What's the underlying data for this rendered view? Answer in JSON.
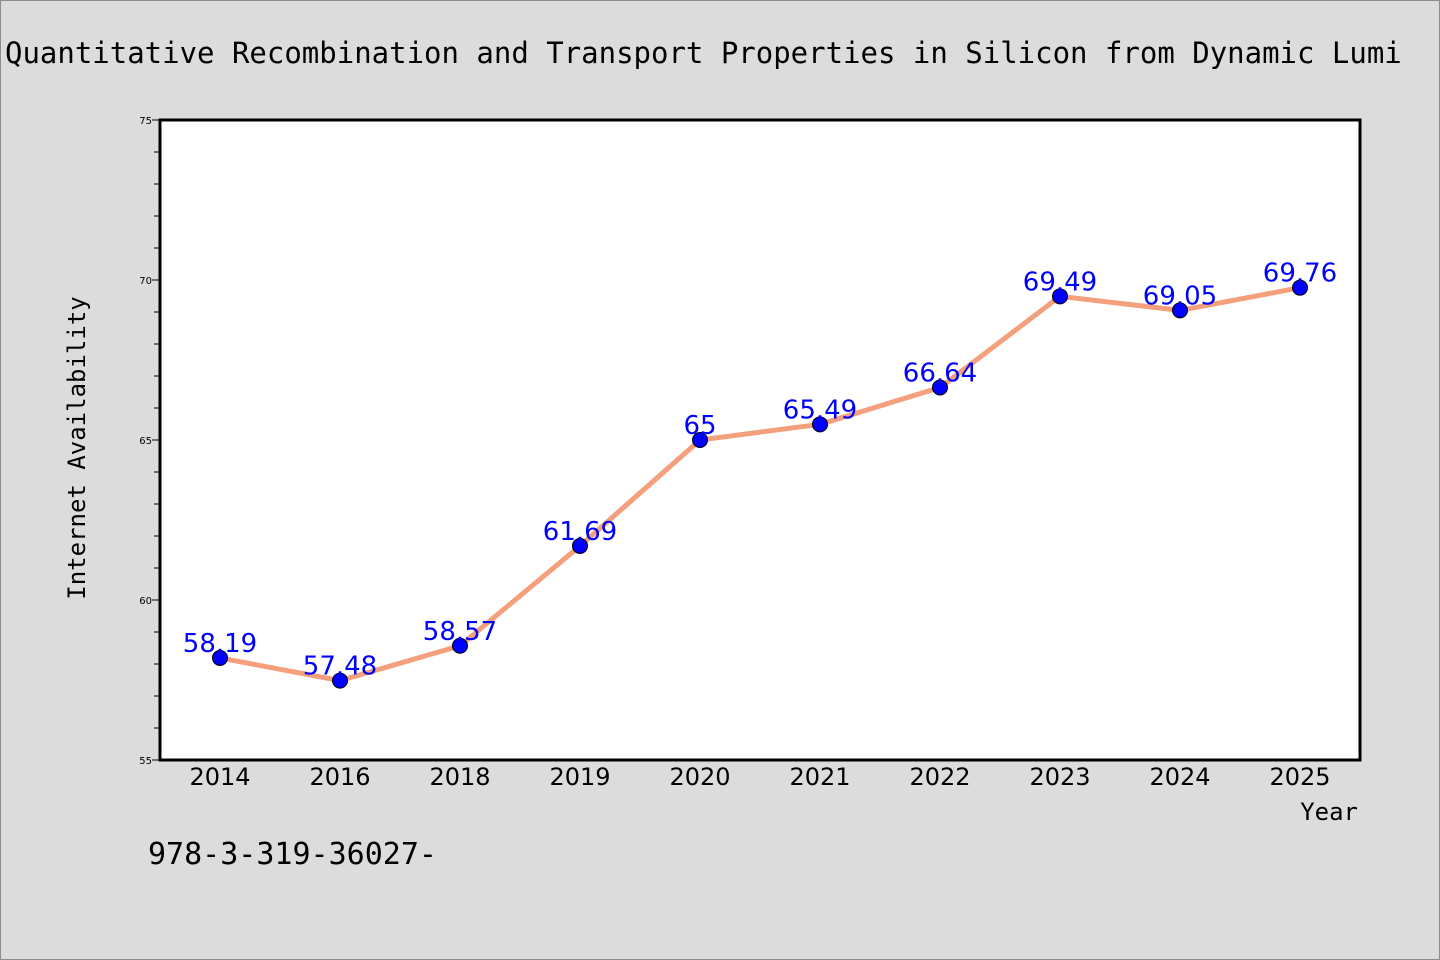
{
  "chart_data": {
    "type": "line",
    "title": "Quantitative Recombination and Transport Properties in Silicon from Dynamic Lumi",
    "xlabel": "Year",
    "ylabel": "Internet Availability",
    "categories": [
      "2014",
      "2016",
      "2018",
      "2019",
      "2020",
      "2021",
      "2022",
      "2023",
      "2024",
      "2025"
    ],
    "series": [
      {
        "values": [
          58.19,
          57.48,
          58.57,
          61.69,
          65,
          65.49,
          66.64,
          69.49,
          69.05,
          69.76
        ],
        "labels": [
          "58.19",
          "57.48",
          "58.57",
          "61.69",
          "65",
          "65.49",
          "66.64",
          "69.49",
          "69.05",
          "69.76"
        ],
        "line_color": "#f4a07c",
        "marker_color": "#0000ff",
        "label_color": "#0000ff"
      }
    ],
    "ylim": [
      55,
      75
    ],
    "yticks": [
      "55",
      "60",
      "65",
      "70",
      "75"
    ],
    "grid": false,
    "legend": "none"
  },
  "footer_text": "978-3-319-36027-",
  "colors": {
    "background": "#dcdcdc",
    "plot_background": "#ffffff",
    "axis": "#000000"
  }
}
